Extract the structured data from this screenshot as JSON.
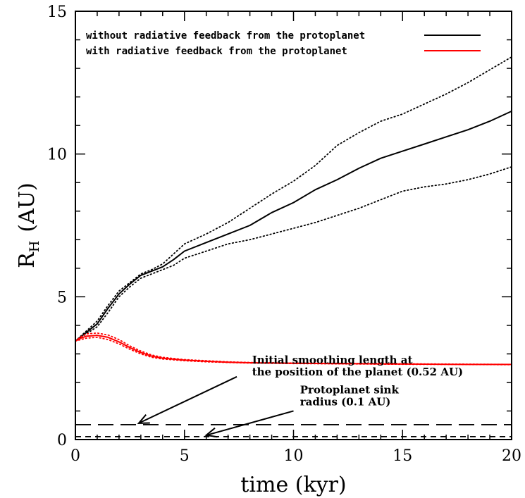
{
  "chart_data": {
    "type": "line",
    "xlabel": "time (kyr)",
    "ylabel_main": "R",
    "ylabel_sub": "H",
    "ylabel_unit": "(AU)",
    "xlim": [
      0,
      20
    ],
    "ylim": [
      0,
      15
    ],
    "xticks": [
      0,
      5,
      10,
      15,
      20
    ],
    "xtick_labels": [
      "0",
      "5",
      "10",
      "15",
      "20"
    ],
    "yticks": [
      0,
      5,
      10,
      15
    ],
    "ytick_labels": [
      "0",
      "5",
      "10",
      "15"
    ],
    "legend": {
      "placement": "top-left",
      "entries": [
        {
          "label": "without radiative feedback from the protoplanet",
          "color": "#000000"
        },
        {
          "label": "with radiative feedback from the protoplanet",
          "color": "#ff0000"
        }
      ]
    },
    "series": [
      {
        "name": "without radiative feedback from the protoplanet",
        "color": "#000000",
        "style": "solid",
        "x": [
          0,
          0.5,
          1,
          1.5,
          2,
          2.5,
          3,
          3.5,
          4,
          4.5,
          5,
          6,
          7,
          8,
          9,
          10,
          11,
          12,
          13,
          14,
          15,
          16,
          17,
          18,
          19,
          20
        ],
        "y": [
          3.45,
          3.75,
          4.05,
          4.6,
          5.1,
          5.45,
          5.75,
          5.9,
          6.05,
          6.3,
          6.6,
          6.9,
          7.2,
          7.5,
          7.95,
          8.3,
          8.75,
          9.1,
          9.5,
          9.85,
          10.1,
          10.35,
          10.6,
          10.85,
          11.15,
          11.5
        ]
      },
      {
        "name": "",
        "color": "#000000",
        "style": "dotted",
        "x": [
          0,
          0.5,
          1,
          1.5,
          2,
          2.5,
          3,
          3.5,
          4,
          4.5,
          5,
          6,
          7,
          8,
          9,
          10,
          11,
          12,
          13,
          14,
          15,
          16,
          17,
          18,
          19,
          20
        ],
        "y": [
          3.45,
          3.8,
          4.15,
          4.7,
          5.2,
          5.5,
          5.8,
          5.95,
          6.15,
          6.5,
          6.85,
          7.2,
          7.6,
          8.1,
          8.6,
          9.05,
          9.6,
          10.3,
          10.75,
          11.15,
          11.4,
          11.75,
          12.1,
          12.5,
          12.95,
          13.4
        ]
      },
      {
        "name": "",
        "color": "#000000",
        "style": "dotted",
        "x": [
          0,
          0.5,
          1,
          1.5,
          2,
          2.5,
          3,
          3.5,
          4,
          4.5,
          5,
          6,
          7,
          8,
          9,
          10,
          11,
          12,
          13,
          14,
          15,
          16,
          17,
          18,
          19,
          20
        ],
        "y": [
          3.45,
          3.7,
          3.95,
          4.45,
          5.0,
          5.35,
          5.65,
          5.8,
          5.95,
          6.1,
          6.35,
          6.6,
          6.85,
          7.0,
          7.2,
          7.4,
          7.6,
          7.85,
          8.1,
          8.4,
          8.7,
          8.85,
          8.95,
          9.1,
          9.3,
          9.55
        ]
      },
      {
        "name": "with radiative feedback from the protoplanet",
        "color": "#ff0000",
        "style": "solid",
        "x": [
          0,
          0.25,
          0.5,
          1,
          1.5,
          2,
          2.5,
          3,
          3.5,
          4,
          5,
          6,
          7,
          8,
          9,
          10,
          12,
          14,
          16,
          18,
          20
        ],
        "y": [
          3.45,
          3.55,
          3.62,
          3.65,
          3.58,
          3.42,
          3.22,
          3.05,
          2.92,
          2.85,
          2.78,
          2.74,
          2.71,
          2.69,
          2.68,
          2.67,
          2.66,
          2.65,
          2.64,
          2.63,
          2.63
        ]
      },
      {
        "name": "",
        "color": "#ff0000",
        "style": "dotted",
        "x": [
          0,
          0.25,
          0.5,
          1,
          1.5,
          2,
          2.5,
          3,
          3.5,
          4,
          5,
          6,
          7,
          8,
          9,
          10,
          12,
          14,
          16,
          18,
          20
        ],
        "y": [
          3.45,
          3.6,
          3.7,
          3.73,
          3.66,
          3.5,
          3.28,
          3.1,
          2.96,
          2.88,
          2.8,
          2.76,
          2.72,
          2.7,
          2.69,
          2.68,
          2.67,
          2.66,
          2.65,
          2.64,
          2.63
        ]
      },
      {
        "name": "",
        "color": "#ff0000",
        "style": "dotted",
        "x": [
          0,
          0.25,
          0.5,
          1,
          1.5,
          2,
          2.5,
          3,
          3.5,
          4,
          5,
          6,
          7,
          8,
          9,
          10,
          12,
          14,
          16,
          18,
          20
        ],
        "y": [
          3.45,
          3.5,
          3.55,
          3.58,
          3.5,
          3.35,
          3.16,
          3.0,
          2.88,
          2.82,
          2.76,
          2.72,
          2.7,
          2.68,
          2.67,
          2.66,
          2.65,
          2.64,
          2.63,
          2.63,
          2.62
        ]
      },
      {
        "name": "",
        "color": "#000000",
        "style": "long-dashed",
        "x": [
          0,
          20
        ],
        "y": [
          0.52,
          0.52
        ]
      },
      {
        "name": "",
        "color": "#000000",
        "style": "short-dashed",
        "x": [
          0,
          20
        ],
        "y": [
          0.1,
          0.1
        ]
      }
    ],
    "annotations": [
      {
        "lines": [
          "Initial smoothing length at",
          "the position of the planet (0.52 AU)"
        ],
        "text_at": [
          8.1,
          2.25
        ],
        "arrow_from": [
          7.4,
          2.2
        ],
        "arrow_to": [
          2.9,
          0.57
        ]
      },
      {
        "lines": [
          "Protoplanet sink",
          "radius (0.1 AU)"
        ],
        "text_at": [
          10.3,
          1.2
        ],
        "arrow_from": [
          10.0,
          1.0
        ],
        "arrow_to": [
          6.0,
          0.15
        ]
      }
    ]
  }
}
